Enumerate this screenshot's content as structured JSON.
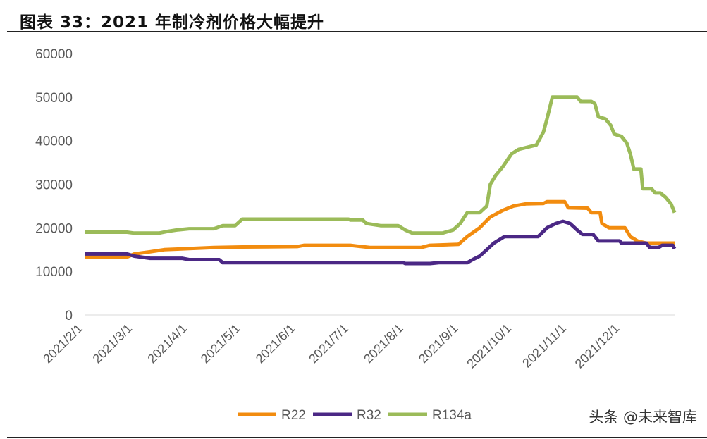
{
  "title": "图表 33：2021 年制冷剂价格大幅提升",
  "watermark": "头条 @未来智库",
  "chart_data": {
    "type": "line",
    "title": "2021 年制冷剂价格大幅提升",
    "xlabel": "",
    "ylabel": "",
    "ylim": [
      0,
      60000
    ],
    "yticks": [
      "0",
      "10000",
      "20000",
      "30000",
      "40000",
      "50000",
      "60000"
    ],
    "xticks": [
      "2021/2/1",
      "2021/3/1",
      "2021/4/1",
      "2021/5/1",
      "2021/6/1",
      "2021/7/1",
      "2021/8/1",
      "2021/9/1",
      "2021/10/1",
      "2021/11/1",
      "2021/12/1"
    ],
    "xrange": [
      "2021-02-01",
      "2021-12-31"
    ],
    "legend_position": "bottom",
    "grid": false,
    "series": [
      {
        "name": "R22",
        "color": "#F28C0F",
        "points": [
          [
            "02-01",
            13300
          ],
          [
            "02-25",
            13300
          ],
          [
            "03-01",
            14000
          ],
          [
            "03-10",
            14500
          ],
          [
            "03-18",
            15000
          ],
          [
            "04-15",
            15500
          ],
          [
            "05-01",
            15600
          ],
          [
            "06-01",
            15700
          ],
          [
            "06-05",
            16000
          ],
          [
            "07-01",
            16000
          ],
          [
            "07-05",
            15800
          ],
          [
            "07-12",
            15500
          ],
          [
            "08-10",
            15500
          ],
          [
            "08-15",
            16000
          ],
          [
            "08-31",
            16200
          ],
          [
            "09-05",
            18000
          ],
          [
            "09-12",
            20000
          ],
          [
            "09-18",
            22500
          ],
          [
            "09-25",
            24000
          ],
          [
            "10-01",
            25000
          ],
          [
            "10-08",
            25500
          ],
          [
            "10-18",
            25600
          ],
          [
            "10-20",
            26000
          ],
          [
            "10-30",
            26000
          ],
          [
            "11-01",
            24600
          ],
          [
            "11-12",
            24500
          ],
          [
            "11-14",
            23500
          ],
          [
            "11-19",
            23500
          ],
          [
            "11-20",
            21000
          ],
          [
            "11-24",
            20000
          ],
          [
            "12-03",
            20000
          ],
          [
            "12-06",
            18000
          ],
          [
            "12-10",
            17000
          ],
          [
            "12-15",
            16500
          ],
          [
            "12-31",
            16500
          ]
        ]
      },
      {
        "name": "R32",
        "color": "#4B2885",
        "points": [
          [
            "02-01",
            14000
          ],
          [
            "02-25",
            14000
          ],
          [
            "03-01",
            13500
          ],
          [
            "03-10",
            13000
          ],
          [
            "03-28",
            13000
          ],
          [
            "04-01",
            12700
          ],
          [
            "04-18",
            12700
          ],
          [
            "04-20",
            12000
          ],
          [
            "07-31",
            12000
          ],
          [
            "08-01",
            11800
          ],
          [
            "08-15",
            11800
          ],
          [
            "08-20",
            12000
          ],
          [
            "09-05",
            12000
          ],
          [
            "09-08",
            12700
          ],
          [
            "09-12",
            13500
          ],
          [
            "09-16",
            15000
          ],
          [
            "09-20",
            16500
          ],
          [
            "09-26",
            18000
          ],
          [
            "10-15",
            18000
          ],
          [
            "10-20",
            20000
          ],
          [
            "10-25",
            21000
          ],
          [
            "10-29",
            21500
          ],
          [
            "11-02",
            21000
          ],
          [
            "11-06",
            19500
          ],
          [
            "11-09",
            18500
          ],
          [
            "11-15",
            18500
          ],
          [
            "11-18",
            17000
          ],
          [
            "11-30",
            17000
          ],
          [
            "12-01",
            16500
          ],
          [
            "12-15",
            16500
          ],
          [
            "12-17",
            15500
          ],
          [
            "12-22",
            15500
          ],
          [
            "12-24",
            16000
          ],
          [
            "12-30",
            16000
          ],
          [
            "12-31",
            15200
          ]
        ]
      },
      {
        "name": "R134a",
        "color": "#9BBB59",
        "points": [
          [
            "02-01",
            19000
          ],
          [
            "02-25",
            19000
          ],
          [
            "03-01",
            18800
          ],
          [
            "03-15",
            18800
          ],
          [
            "03-20",
            19200
          ],
          [
            "03-25",
            19500
          ],
          [
            "04-01",
            19800
          ],
          [
            "04-15",
            19800
          ],
          [
            "04-20",
            20500
          ],
          [
            "04-27",
            20500
          ],
          [
            "05-01",
            22000
          ],
          [
            "06-30",
            22000
          ],
          [
            "07-01",
            21800
          ],
          [
            "07-08",
            21800
          ],
          [
            "07-10",
            21000
          ],
          [
            "07-18",
            20500
          ],
          [
            "07-28",
            20500
          ],
          [
            "08-01",
            19500
          ],
          [
            "08-05",
            18800
          ],
          [
            "08-22",
            18800
          ],
          [
            "08-28",
            19500
          ],
          [
            "09-01",
            21000
          ],
          [
            "09-05",
            23500
          ],
          [
            "09-12",
            23500
          ],
          [
            "09-16",
            25000
          ],
          [
            "09-18",
            30000
          ],
          [
            "09-21",
            32000
          ],
          [
            "09-25",
            34000
          ],
          [
            "09-30",
            37000
          ],
          [
            "10-04",
            38000
          ],
          [
            "10-14",
            39000
          ],
          [
            "10-18",
            42000
          ],
          [
            "10-20",
            45000
          ],
          [
            "10-23",
            50000
          ],
          [
            "11-06",
            50000
          ],
          [
            "11-08",
            49000
          ],
          [
            "11-14",
            49000
          ],
          [
            "11-16",
            48500
          ],
          [
            "11-18",
            45500
          ],
          [
            "11-22",
            45000
          ],
          [
            "11-25",
            43500
          ],
          [
            "11-27",
            41500
          ],
          [
            "12-01",
            41000
          ],
          [
            "12-04",
            39500
          ],
          [
            "12-06",
            37000
          ],
          [
            "12-08",
            33500
          ],
          [
            "12-12",
            33500
          ],
          [
            "12-13",
            29000
          ],
          [
            "12-18",
            29000
          ],
          [
            "12-20",
            28000
          ],
          [
            "12-23",
            28000
          ],
          [
            "12-26",
            27000
          ],
          [
            "12-29",
            25500
          ],
          [
            "12-31",
            23500
          ]
        ]
      }
    ]
  }
}
